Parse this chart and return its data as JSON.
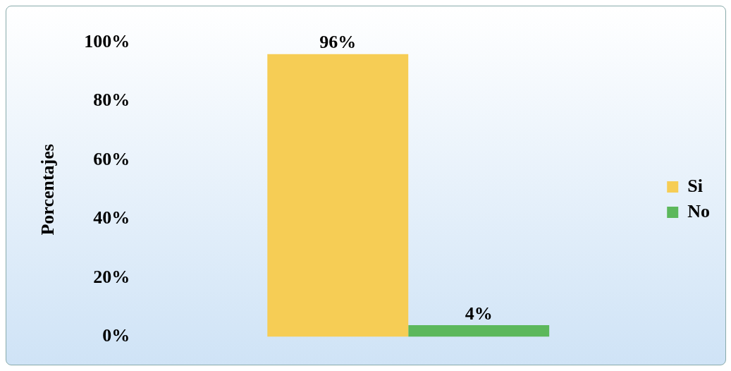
{
  "chart_data": {
    "type": "bar",
    "ylabel": "Porcentajes",
    "categories": [
      null
    ],
    "series": [
      {
        "name": "Si",
        "color": "#f6cd55",
        "values": [
          96
        ],
        "value_labels": [
          "96%"
        ]
      },
      {
        "name": "No",
        "color": "#5cb85c",
        "values": [
          4
        ],
        "value_labels": [
          "4%"
        ]
      }
    ],
    "ylim": [
      0,
      100
    ],
    "yticks": [
      {
        "value": 0,
        "label": "0%"
      },
      {
        "value": 20,
        "label": "20%"
      },
      {
        "value": 40,
        "label": "40%"
      },
      {
        "value": 60,
        "label": "60%"
      },
      {
        "value": 80,
        "label": "80%"
      },
      {
        "value": 100,
        "label": "100%"
      }
    ],
    "grid": false,
    "legend": "right"
  }
}
